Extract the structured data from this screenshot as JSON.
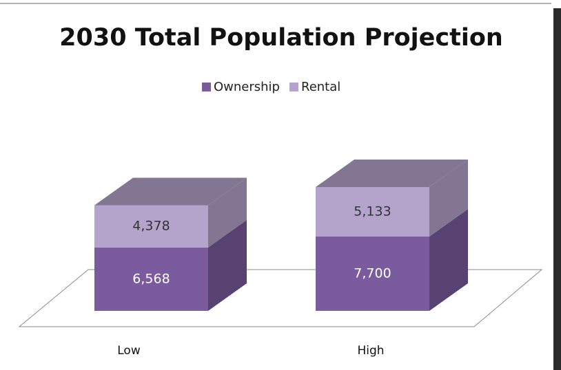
{
  "chart_data": {
    "type": "bar3d_stacked",
    "title": "2030 Total Population Projection",
    "categories": [
      "Low",
      "High"
    ],
    "series": [
      {
        "name": "Ownership",
        "color": "#7a5c9e",
        "values": [
          6568,
          7700
        ],
        "value_labels": [
          "6,568",
          "7,700"
        ]
      },
      {
        "name": "Rental",
        "color": "#b4a4cc",
        "values": [
          4378,
          5133
        ],
        "value_labels": [
          "4,378",
          "5,133"
        ]
      }
    ],
    "legend": "top"
  }
}
